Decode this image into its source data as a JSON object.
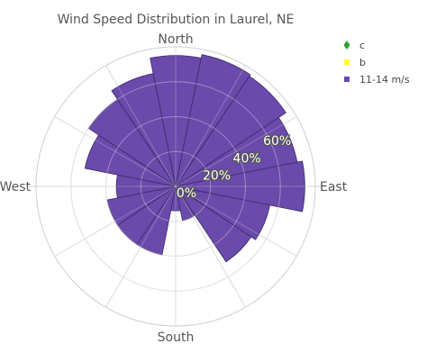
{
  "chart_data": {
    "type": "barpolar",
    "title": "Wind Speed Distribution in Laurel, NE",
    "angular_labels": [
      "North",
      "East",
      "South",
      "West"
    ],
    "radial_tick_labels": [
      "0%",
      "20%",
      "40%",
      "60%"
    ],
    "radial_ticks": [
      0,
      20,
      40,
      60
    ],
    "radial_range": [
      0,
      80
    ],
    "directions": [
      "N",
      "NNE",
      "NE",
      "ENE",
      "E",
      "ESE",
      "SE",
      "SSE",
      "S",
      "SSW",
      "SW",
      "WSW",
      "W",
      "WNW",
      "NW",
      "NNW"
    ],
    "series": [
      {
        "name": "c",
        "values": [],
        "color": "#2ca02c",
        "marker": "diamond"
      },
      {
        "name": "b",
        "values": [],
        "color": "#ffff33",
        "marker": "square"
      },
      {
        "name": "11-14 m/s",
        "values": [
          75,
          77,
          76,
          71,
          74,
          55,
          52,
          20,
          14,
          40,
          40,
          40,
          34,
          53,
          60,
          66
        ],
        "color": "#6a4aaa",
        "marker": "square"
      }
    ],
    "legend_position": "top-right",
    "grid": true
  }
}
